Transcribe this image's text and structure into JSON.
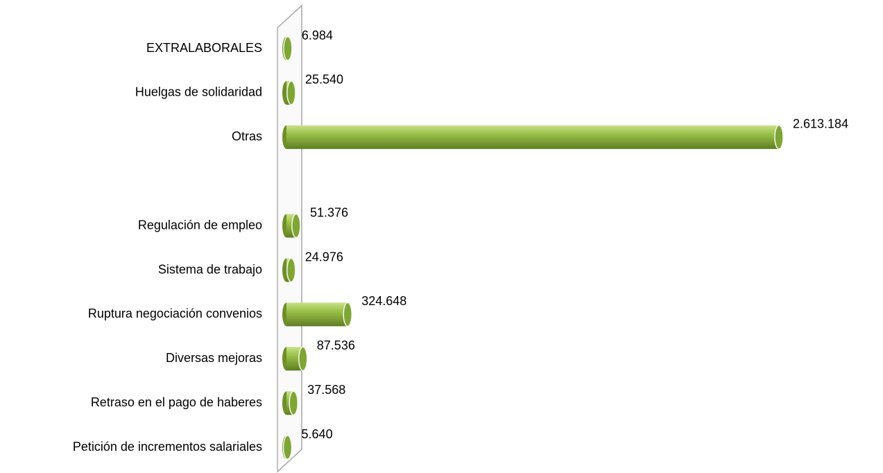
{
  "chart_data": {
    "type": "bar",
    "orientation": "horizontal",
    "categories": [
      "EXTRALABORALES",
      "Huelgas de solidaridad",
      "Otras",
      null,
      "Regulación de empleo",
      "Sistema de trabajo",
      "Ruptura negociación convenios",
      "Diversas mejoras",
      "Retraso en el pago de haberes",
      "Petición de incrementos salariales"
    ],
    "values": [
      6984,
      25540,
      2613184,
      null,
      51376,
      24976,
      324648,
      87536,
      37568,
      5640
    ],
    "value_labels": [
      "6.984",
      "25.540",
      "2.613.184",
      null,
      "51.376",
      "24.976",
      "324.648",
      "87.536",
      "37.568",
      "5.640"
    ],
    "color": "#8db33a"
  }
}
